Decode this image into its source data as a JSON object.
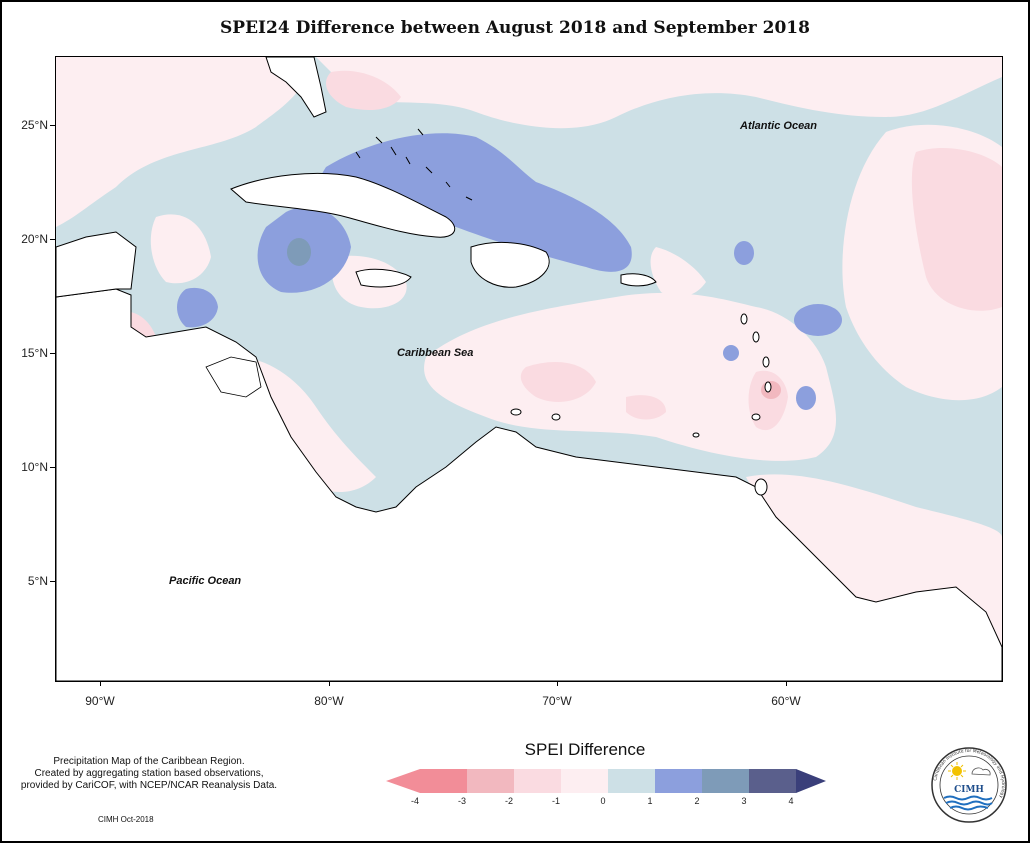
{
  "title": "SPEI24 Difference between August 2018 and September 2018",
  "map": {
    "ocean_labels": {
      "atlantic": "Atlantic Ocean",
      "caribbean": "Caribbean Sea",
      "pacific": "Pacific Ocean"
    },
    "latitudes": [
      "25°N",
      "20°N",
      "15°N",
      "10°N",
      "5°N"
    ],
    "longitudes": [
      "90°W",
      "80°W",
      "70°W",
      "60°W"
    ],
    "colors": {
      "strong_wet": "#3a3f7a",
      "wet_2_3": "#7e9bb8",
      "wet_1_2": "#8c9fdd",
      "wet_0_1": "#cde0e6",
      "dry_0_1": "#fdeef1",
      "dry_1_2": "#fadbe1",
      "dry_2_3": "#f2b8bf",
      "dry_3_4": "#f28d98"
    }
  },
  "legend": {
    "title": "SPEI Difference",
    "ticks": [
      "-4",
      "-3",
      "-2",
      "-1",
      "0",
      "1",
      "2",
      "3",
      "4"
    ]
  },
  "notes": {
    "line1": "Precipitation Map of the Caribbean Region.",
    "line2": "Created by aggregating station based observations,",
    "line3": "provided by CariCOF, with NCEP/NCAR Reanalysis Data.",
    "credit": "CIMH Oct-2018"
  },
  "logo": {
    "text": "CIMH",
    "ring_text": "Caribbean Institute for Meteorology and Hydrology"
  }
}
